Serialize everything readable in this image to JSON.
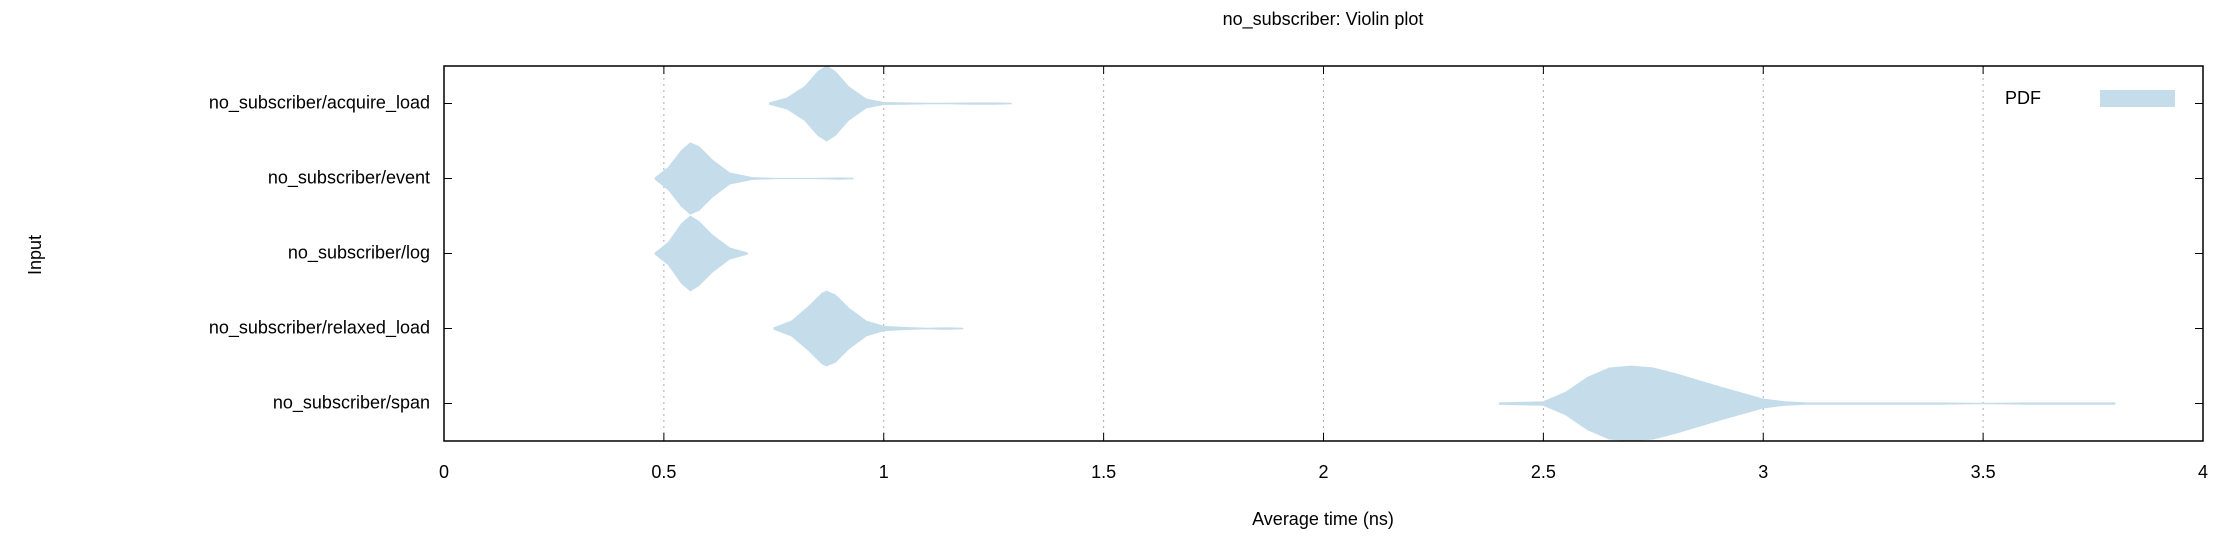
{
  "chart_data": {
    "type": "violin",
    "title": "no_subscriber: Violin plot",
    "xlabel": "Average time (ns)",
    "ylabel": "Input",
    "categories": [
      "no_subscriber/acquire_load",
      "no_subscriber/event",
      "no_subscriber/log",
      "no_subscriber/relaxed_load",
      "no_subscriber/span"
    ],
    "series": [
      {
        "name": "PDF",
        "color": "#c5dcea"
      }
    ],
    "violins": [
      {
        "x": [
          0.74,
          0.78,
          0.82,
          0.85,
          0.87,
          0.89,
          0.92,
          0.96,
          1.0,
          1.05,
          1.1,
          1.15,
          1.2,
          1.25,
          1.29
        ],
        "density": [
          0.02,
          0.15,
          0.45,
          0.85,
          1,
          0.85,
          0.45,
          0.12,
          0.03,
          0.02,
          0.01,
          0.01,
          0.02,
          0.02,
          0.01
        ]
      },
      {
        "x": [
          0.48,
          0.51,
          0.54,
          0.56,
          0.58,
          0.61,
          0.65,
          0.7,
          0.75,
          0.8,
          0.85,
          0.9,
          0.93
        ],
        "density": [
          0.02,
          0.3,
          0.75,
          0.95,
          0.85,
          0.5,
          0.15,
          0.03,
          0.005,
          0.005,
          0.005,
          0.02,
          0.01
        ]
      },
      {
        "x": [
          0.48,
          0.51,
          0.54,
          0.56,
          0.58,
          0.61,
          0.65,
          0.69
        ],
        "density": [
          0.02,
          0.3,
          0.8,
          1,
          0.85,
          0.5,
          0.15,
          0.02
        ]
      },
      {
        "x": [
          0.75,
          0.79,
          0.83,
          0.86,
          0.87,
          0.89,
          0.92,
          0.96,
          1.0,
          1.05,
          1.1,
          1.13,
          1.15,
          1.18
        ],
        "density": [
          0.02,
          0.2,
          0.6,
          0.95,
          1,
          0.9,
          0.55,
          0.2,
          0.06,
          0.03,
          0.01,
          0.02,
          0.02,
          0.01
        ]
      },
      {
        "x": [
          2.4,
          2.5,
          2.55,
          2.6,
          2.65,
          2.7,
          2.75,
          2.8,
          2.9,
          3.0,
          3.05,
          3.1,
          3.2,
          3.3,
          3.4,
          3.5,
          3.6,
          3.7,
          3.8
        ],
        "density": [
          0.02,
          0.05,
          0.3,
          0.7,
          0.95,
          1,
          0.95,
          0.8,
          0.45,
          0.12,
          0.05,
          0.02,
          0.02,
          0.02,
          0.02,
          0.005,
          0.02,
          0.02,
          0.02
        ]
      }
    ],
    "xlim": [
      0,
      4
    ],
    "xticks": [
      0,
      0.5,
      1,
      1.5,
      2,
      2.5,
      3,
      3.5,
      4
    ],
    "grid": true,
    "legend": "top-right"
  }
}
